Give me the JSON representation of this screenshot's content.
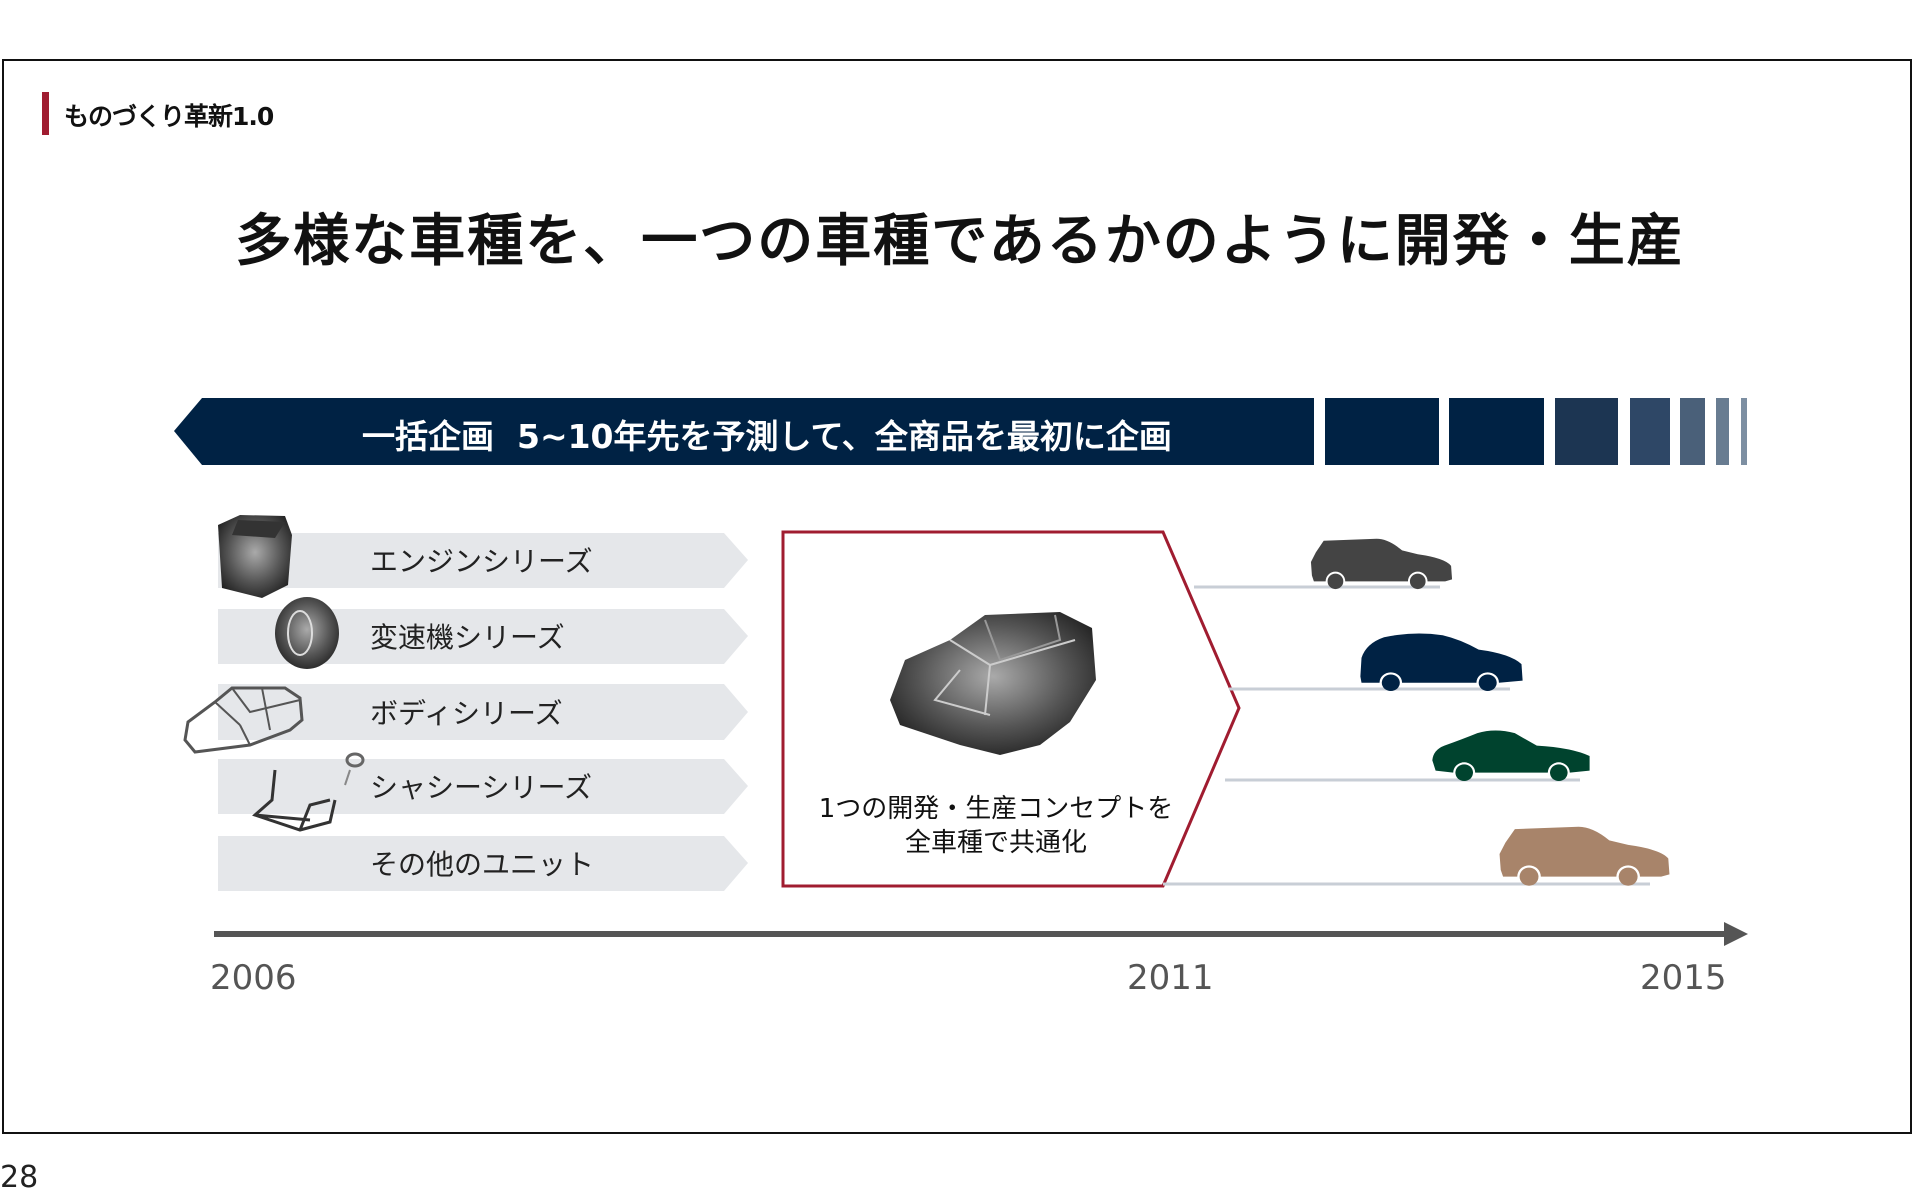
{
  "section_tag": "ものづくり革新1.0",
  "title": "多様な車種を、一つの車種であるかのように開発・生産",
  "banner": {
    "text": "一括企画  5~10年先を予測して、全商品を最初に企画",
    "color": "#002244",
    "fade_colors": [
      "#002244",
      "#002244",
      "#1c3552",
      "#2e4766",
      "#4a6079",
      "#687c91",
      "#7d8fa2"
    ]
  },
  "unit_series": [
    {
      "label": "エンジンシリーズ",
      "icon": "engine-icon"
    },
    {
      "label": "変速機シリーズ",
      "icon": "transmission-icon"
    },
    {
      "label": "ボディシリーズ",
      "icon": "body-frame-icon"
    },
    {
      "label": "シャシーシリーズ",
      "icon": "chassis-icon"
    },
    {
      "label": "その他のユニット",
      "icon": ""
    }
  ],
  "concept_box": {
    "line1": "1つの開発・生産コンセプトを",
    "line2": "全車種で共通化",
    "border_color": "#a01c30",
    "icon": "car-wireframe-icon"
  },
  "vehicles": [
    {
      "type": "suv",
      "color": "#444444"
    },
    {
      "type": "hatchback",
      "color": "#002244"
    },
    {
      "type": "roadster",
      "color": "#00432e"
    },
    {
      "type": "suv",
      "color": "#a8846a"
    }
  ],
  "timeline": {
    "years": [
      "2006",
      "2011",
      "2015"
    ]
  },
  "page_number": "28"
}
